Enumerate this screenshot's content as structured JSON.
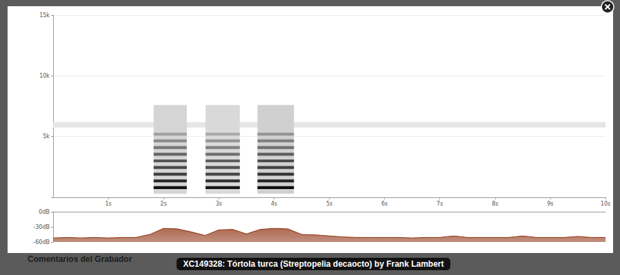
{
  "page": {
    "heading": "Comentarios del Grabador",
    "caption": "XC149328: Tórtola turca (Streptopelia decaocto) by Frank Lambert"
  },
  "chart_data": [
    {
      "type": "spectrogram",
      "color": "#000000",
      "grid": true,
      "xlim": [
        0,
        10
      ],
      "xticks": [
        {
          "value": 1,
          "label": "1s"
        },
        {
          "value": 2,
          "label": "2s"
        },
        {
          "value": 3,
          "label": "3s"
        },
        {
          "value": 4,
          "label": "4s"
        },
        {
          "value": 5,
          "label": "5s"
        },
        {
          "value": 6,
          "label": "6s"
        },
        {
          "value": 7,
          "label": "7s"
        },
        {
          "value": 8,
          "label": "8s"
        },
        {
          "value": 9,
          "label": "9s"
        },
        {
          "value": 10,
          "label": "10s"
        }
      ],
      "ylim": [
        0,
        15
      ],
      "yticks": [
        {
          "value": 5,
          "label": "5k"
        },
        {
          "value": 10,
          "label": "10k"
        },
        {
          "value": 15,
          "label": "15k"
        }
      ],
      "clim": [
        -60,
        0
      ],
      "cells": [
        [
          0,
          10,
          5.75,
          6.2,
          -54
        ],
        [
          1.82,
          2.42,
          0.3,
          7.6,
          -50
        ],
        [
          1.82,
          2.42,
          0.68,
          0.92,
          -4
        ],
        [
          1.82,
          2.42,
          1.23,
          1.47,
          -10
        ],
        [
          1.82,
          2.42,
          1.78,
          2.02,
          -14
        ],
        [
          1.82,
          2.42,
          2.33,
          2.57,
          -17
        ],
        [
          1.82,
          2.42,
          2.88,
          3.12,
          -20
        ],
        [
          1.82,
          2.42,
          3.43,
          3.67,
          -24
        ],
        [
          1.82,
          2.42,
          3.98,
          4.22,
          -28
        ],
        [
          1.82,
          2.42,
          4.53,
          4.77,
          -33
        ],
        [
          1.82,
          2.42,
          5.08,
          5.32,
          -38
        ],
        [
          2.76,
          3.38,
          0.3,
          7.6,
          -51
        ],
        [
          2.76,
          3.38,
          0.68,
          0.92,
          -5
        ],
        [
          2.76,
          3.38,
          1.23,
          1.47,
          -12
        ],
        [
          2.76,
          3.38,
          1.78,
          2.02,
          -16
        ],
        [
          2.76,
          3.38,
          2.33,
          2.57,
          -19
        ],
        [
          2.76,
          3.38,
          2.88,
          3.12,
          -22
        ],
        [
          2.76,
          3.38,
          3.43,
          3.67,
          -26
        ],
        [
          2.76,
          3.38,
          3.98,
          4.22,
          -30
        ],
        [
          2.76,
          3.38,
          4.53,
          4.77,
          -35
        ],
        [
          2.76,
          3.38,
          5.08,
          5.32,
          -40
        ],
        [
          3.7,
          4.36,
          0.3,
          7.6,
          -49
        ],
        [
          3.7,
          4.36,
          0.68,
          0.92,
          -3
        ],
        [
          3.7,
          4.36,
          1.23,
          1.47,
          -9
        ],
        [
          3.7,
          4.36,
          1.78,
          2.02,
          -12
        ],
        [
          3.7,
          4.36,
          2.33,
          2.57,
          -15
        ],
        [
          3.7,
          4.36,
          2.88,
          3.12,
          -18
        ],
        [
          3.7,
          4.36,
          3.43,
          3.67,
          -22
        ],
        [
          3.7,
          4.36,
          3.98,
          4.22,
          -26
        ],
        [
          3.7,
          4.36,
          4.53,
          4.77,
          -30
        ],
        [
          3.7,
          4.36,
          5.08,
          5.32,
          -35
        ]
      ]
    },
    {
      "type": "area",
      "color": "#8b2b0b",
      "grid": false,
      "tick_labels": "y",
      "xlim": [
        0,
        10
      ],
      "ylim": [
        -60,
        0
      ],
      "yticks": [
        {
          "value": -60,
          "label": "-60dB"
        },
        {
          "value": -30,
          "label": "-30dB"
        },
        {
          "value": 0,
          "label": "0dB"
        }
      ],
      "x": [
        0,
        0.25,
        0.5,
        0.75,
        1,
        1.25,
        1.5,
        1.75,
        2,
        2.25,
        2.5,
        2.75,
        3,
        3.25,
        3.5,
        3.75,
        4,
        4.25,
        4.5,
        4.75,
        5,
        5.25,
        5.5,
        5.75,
        6,
        6.25,
        6.5,
        6.75,
        7,
        7.25,
        7.5,
        7.75,
        8,
        8.25,
        8.5,
        8.75,
        9,
        9.25,
        9.5,
        9.75,
        10
      ],
      "values": [
        -52,
        -51,
        -52,
        -51,
        -52,
        -51,
        -51,
        -45,
        -33,
        -34,
        -40,
        -47,
        -36,
        -35,
        -44,
        -35,
        -33,
        -34,
        -45,
        -46,
        -48,
        -50,
        -51,
        -51,
        -51,
        -51,
        -52,
        -51,
        -51,
        -48,
        -51,
        -51,
        -51,
        -51,
        -48,
        -51,
        -51,
        -51,
        -49,
        -51,
        -51
      ]
    }
  ]
}
